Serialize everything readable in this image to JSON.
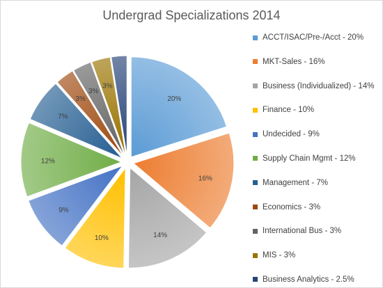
{
  "chart_data": {
    "type": "pie",
    "title": "Undergrad Specializations 2014",
    "exploded": true,
    "legend_position": "right",
    "series": [
      {
        "name": "ACCT/ISAC/Pre-/Acct - 20%",
        "value": 20,
        "data_label": "20%",
        "color": "#5B9BD5"
      },
      {
        "name": "MKT-Sales - 16%",
        "value": 16,
        "data_label": "16%",
        "color": "#ED7D31"
      },
      {
        "name": "Business (Individualized) - 14%",
        "value": 14,
        "data_label": "14%",
        "color": "#A5A5A5"
      },
      {
        "name": "Finance - 10%",
        "value": 10,
        "data_label": "10%",
        "color": "#FFC000"
      },
      {
        "name": "Undecided - 9%",
        "value": 9,
        "data_label": "9%",
        "color": "#4472C4"
      },
      {
        "name": "Supply Chain Mgmt - 12%",
        "value": 12,
        "data_label": "12%",
        "color": "#70AD47"
      },
      {
        "name": "Management - 7%",
        "value": 7,
        "data_label": "7%",
        "color": "#255E91"
      },
      {
        "name": "Economics - 3%",
        "value": 3,
        "data_label": "3%",
        "color": "#9E480E"
      },
      {
        "name": "International Bus - 3%",
        "value": 3,
        "data_label": "3%",
        "color": "#636363"
      },
      {
        "name": "MIS - 3%",
        "value": 3,
        "data_label": "3%",
        "color": "#997300"
      },
      {
        "name": "Business Analytics - 2.5%",
        "value": 2.5,
        "data_label": "",
        "color": "#264478"
      }
    ]
  }
}
